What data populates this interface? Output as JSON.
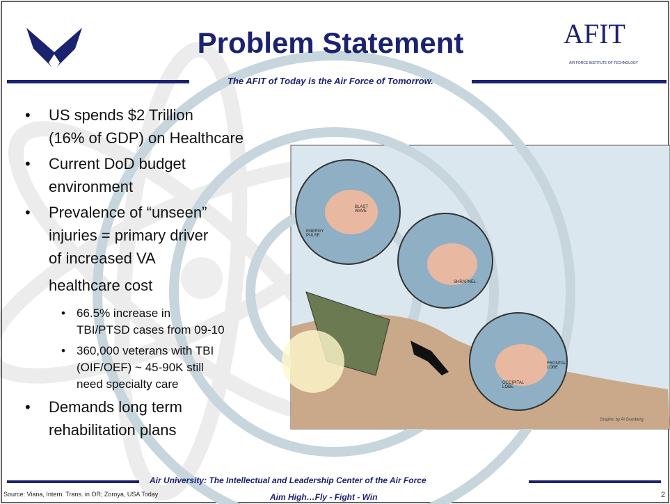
{
  "header": {
    "title": "Problem Statement",
    "tagline": "The AFIT of Today is the Air Force of Tomorrow.",
    "logo_text": "AFIT",
    "logo_subtext": "AIR FORCE INSTITUTE OF TECHNOLOGY"
  },
  "bullets": [
    {
      "lines": [
        "US spends $2 Trillion",
        "(16% of GDP) on Healthcare"
      ],
      "sub": []
    },
    {
      "lines": [
        "Current DoD budget",
        "environment"
      ],
      "sub": []
    },
    {
      "lines": [
        "Prevalence of “unseen”",
        "injuries = primary driver",
        "of increased VA",
        "healthcare cost"
      ],
      "sub": [
        {
          "lines": [
            "66.5% increase in",
            "TBI/PTSD cases from 09-10"
          ]
        },
        {
          "lines": [
            "360,000 veterans with TBI",
            "(OIF/OEF) ~ 45-90K still",
            "need specialty care"
          ]
        }
      ]
    },
    {
      "lines": [
        "Demands long term",
        "rehabilitation plans"
      ],
      "sub": []
    }
  ],
  "figure": {
    "labels": [
      "ENERGY PULSE",
      "BLAST WAVE",
      "SHRAPNEL",
      "FRONTAL LOBE",
      "OCCIPITAL LOBE"
    ],
    "credit": "Graphic by Al Granberg"
  },
  "footer": {
    "line1": "Air University: The Intellectual and Leadership Center of the Air Force",
    "source": "Source: Viana, Intern. Trans. in OR; Zoroya, USA Today",
    "motto": "Aim High…Fly - Fight - Win",
    "page": "2"
  }
}
